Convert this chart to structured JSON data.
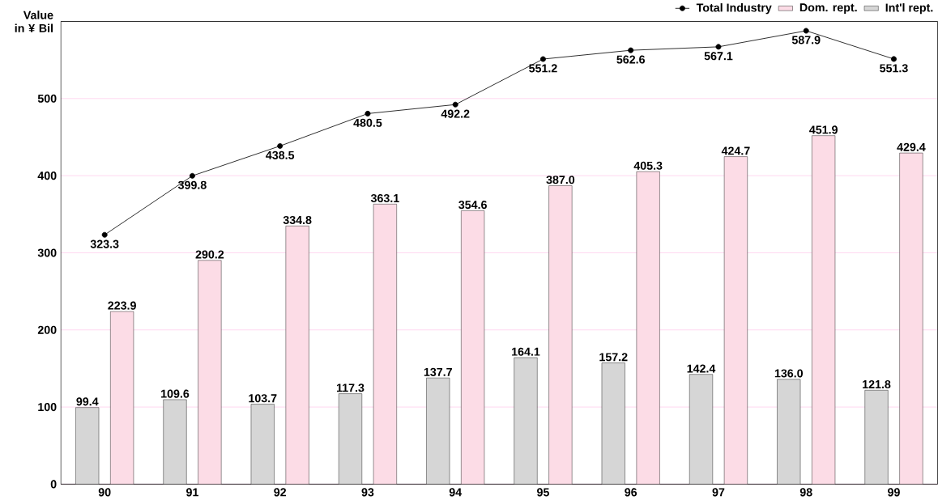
{
  "chart_data": {
    "type": "bar",
    "ylabel": "Value in ¥ Bil",
    "categories": [
      "90",
      "91",
      "92",
      "93",
      "94",
      "95",
      "96",
      "97",
      "98",
      "99"
    ],
    "series": [
      {
        "name": "Total Industry",
        "type": "line",
        "color": "#000000",
        "marker": "circle",
        "values": [
          323.3,
          399.8,
          438.5,
          480.5,
          492.2,
          551.2,
          562.6,
          567.1,
          587.9,
          551.3
        ],
        "value_labels": [
          "323.3",
          "399.8",
          "438.5",
          "480.5",
          "492.2",
          "551.2",
          "562.6",
          "567.1",
          "587.9",
          "551.3"
        ]
      },
      {
        "name": "Dom. rept.",
        "color": "#fcdce6",
        "values": [
          223.9,
          290.2,
          334.8,
          363.1,
          354.6,
          387.0,
          405.3,
          424.7,
          451.9,
          429.4
        ],
        "value_labels": [
          "223.9",
          "290.2",
          "334.8",
          "363.1",
          "354.6",
          "387.0",
          "405.3",
          "424.7",
          "451.9",
          "429.4"
        ]
      },
      {
        "name": "Int'l rept.",
        "color": "#d6d6d6",
        "values": [
          99.4,
          109.6,
          103.7,
          117.3,
          137.7,
          164.1,
          157.2,
          142.4,
          136.0,
          121.8
        ],
        "value_labels": [
          "99.4",
          "109.6",
          "103.7",
          "117.3",
          "137.7",
          "164.1",
          "157.2",
          "142.4",
          "136.0",
          "121.8"
        ]
      }
    ],
    "ylim": [
      0,
      600
    ],
    "yticks": [
      0,
      100,
      200,
      300,
      400,
      500
    ],
    "grid": "y",
    "legend": "top right"
  }
}
